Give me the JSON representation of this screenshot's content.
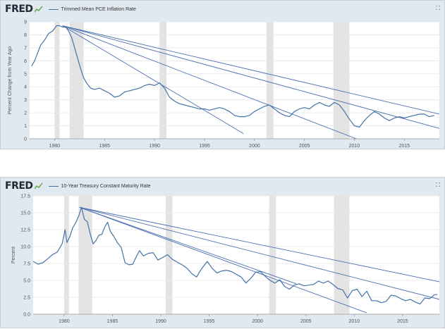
{
  "chart_data": [
    {
      "type": "line",
      "brand": "FRED",
      "title": "Trimmed Mean PCE Inflation Rate",
      "ylabel": "Percent Change from Year Ago",
      "xlim": [
        1977.5,
        2018.5
      ],
      "ylim": [
        0,
        9
      ],
      "yticks": [
        0,
        1,
        2,
        3,
        4,
        5,
        6,
        7,
        8,
        9
      ],
      "xticks": [
        1980,
        1985,
        1990,
        1995,
        2000,
        2005,
        2010,
        2015
      ],
      "recessions": [
        [
          1980.0,
          1980.5
        ],
        [
          1981.5,
          1982.9
        ],
        [
          1990.5,
          1991.2
        ],
        [
          2001.2,
          2001.9
        ],
        [
          2007.9,
          2009.5
        ]
      ],
      "series": [
        {
          "color": "#4572a7",
          "x": [
            1977.7,
            1978.0,
            1978.3,
            1978.6,
            1979.0,
            1979.4,
            1979.8,
            1980.2,
            1980.5,
            1980.8,
            1981.1,
            1981.4,
            1981.7,
            1982.0,
            1982.3,
            1982.6,
            1982.9,
            1983.2,
            1983.6,
            1984.0,
            1984.5,
            1985.0,
            1985.5,
            1986.0,
            1986.5,
            1987.0,
            1987.5,
            1988.0,
            1988.5,
            1989.0,
            1989.5,
            1990.0,
            1990.5,
            1991.0,
            1991.5,
            1992.0,
            1992.5,
            1993.0,
            1993.5,
            1994.0,
            1994.5,
            1995.0,
            1995.5,
            1996.0,
            1996.5,
            1997.0,
            1997.5,
            1998.0,
            1998.5,
            1999.0,
            1999.5,
            2000.0,
            2000.5,
            2001.0,
            2001.5,
            2002.0,
            2002.5,
            2003.0,
            2003.5,
            2004.0,
            2004.5,
            2005.0,
            2005.5,
            2006.0,
            2006.5,
            2007.0,
            2007.5,
            2008.0,
            2008.5,
            2009.0,
            2009.5,
            2010.0,
            2010.5,
            2011.0,
            2011.5,
            2012.0,
            2012.5,
            2013.0,
            2013.5,
            2014.0,
            2014.5,
            2015.0,
            2015.5,
            2016.0,
            2016.5,
            2017.0,
            2017.5,
            2018.0
          ],
          "values": [
            5.6,
            6.0,
            6.6,
            7.2,
            7.6,
            8.1,
            8.3,
            8.7,
            8.7,
            8.6,
            8.6,
            8.3,
            7.8,
            7.0,
            6.2,
            5.4,
            4.7,
            4.3,
            3.9,
            3.8,
            3.9,
            3.7,
            3.5,
            3.2,
            3.3,
            3.6,
            3.7,
            3.8,
            3.9,
            4.1,
            4.2,
            4.1,
            4.3,
            3.9,
            3.2,
            2.9,
            2.7,
            2.6,
            2.5,
            2.4,
            2.3,
            2.3,
            2.2,
            2.3,
            2.4,
            2.3,
            2.1,
            1.8,
            1.7,
            1.7,
            1.8,
            2.1,
            2.3,
            2.5,
            2.6,
            2.3,
            2.0,
            1.8,
            1.7,
            2.1,
            2.3,
            2.4,
            2.3,
            2.6,
            2.8,
            2.6,
            2.5,
            2.8,
            2.6,
            2.1,
            1.5,
            1.0,
            0.9,
            1.4,
            1.8,
            2.1,
            1.9,
            1.6,
            1.4,
            1.6,
            1.7,
            1.6,
            1.7,
            1.8,
            1.9,
            1.9,
            1.7,
            1.8
          ]
        }
      ],
      "trendlines": [
        [
          [
            1980.8,
            8.7
          ],
          [
            2018.5,
            0.8
          ]
        ],
        [
          [
            1980.8,
            8.7
          ],
          [
            2010.2,
            0.0
          ]
        ],
        [
          [
            1980.8,
            8.7
          ],
          [
            1998.9,
            0.4
          ]
        ],
        [
          [
            1980.8,
            8.7
          ],
          [
            2018.5,
            1.9
          ]
        ]
      ]
    },
    {
      "type": "line",
      "brand": "FRED",
      "title": "10-Year Treasury Constant Maturity Rate",
      "ylabel": "Percent",
      "xlim": [
        1976.8,
        2018.8
      ],
      "ylim": [
        0,
        17.5
      ],
      "yticks": [
        0.0,
        2.5,
        5.0,
        7.5,
        10.0,
        12.5,
        15.0,
        17.5
      ],
      "ytick_labels": [
        "0.0",
        "2.5",
        "5.0",
        "7.5",
        "10.0",
        "12.5",
        "15.0",
        "17.5"
      ],
      "xticks": [
        1980,
        1985,
        1990,
        1995,
        2000,
        2005,
        2010,
        2015
      ],
      "recessions": [
        [
          1980.0,
          1980.5
        ],
        [
          1981.5,
          1982.9
        ],
        [
          1990.5,
          1991.2
        ],
        [
          2001.2,
          2001.9
        ],
        [
          2007.9,
          2009.5
        ]
      ],
      "series": [
        {
          "color": "#4572a7",
          "x": [
            1976.8,
            1977.3,
            1977.8,
            1978.3,
            1978.8,
            1979.3,
            1979.8,
            1980.1,
            1980.3,
            1980.6,
            1980.9,
            1981.2,
            1981.5,
            1981.8,
            1982.1,
            1982.4,
            1982.7,
            1983.0,
            1983.3,
            1983.6,
            1983.9,
            1984.2,
            1984.5,
            1984.8,
            1985.1,
            1985.5,
            1985.9,
            1986.3,
            1986.7,
            1987.1,
            1987.5,
            1987.8,
            1988.2,
            1988.7,
            1989.2,
            1989.7,
            1990.2,
            1990.7,
            1991.2,
            1991.7,
            1992.2,
            1992.7,
            1993.2,
            1993.7,
            1994.2,
            1994.8,
            1995.3,
            1995.8,
            1996.3,
            1996.8,
            1997.3,
            1997.8,
            1998.3,
            1998.8,
            1999.3,
            1999.8,
            2000.3,
            2000.8,
            2001.3,
            2001.8,
            2002.3,
            2002.8,
            2003.3,
            2003.8,
            2004.3,
            2004.8,
            2005.3,
            2005.8,
            2006.3,
            2006.8,
            2007.3,
            2007.8,
            2008.3,
            2008.8,
            2009.3,
            2009.8,
            2010.3,
            2010.8,
            2011.3,
            2011.8,
            2012.3,
            2012.8,
            2013.3,
            2013.8,
            2014.3,
            2014.8,
            2015.3,
            2015.8,
            2016.3,
            2016.8,
            2017.3,
            2017.8,
            2018.3,
            2018.6
          ],
          "values": [
            7.8,
            7.4,
            7.6,
            8.2,
            8.8,
            9.2,
            10.4,
            12.5,
            10.6,
            11.5,
            12.8,
            13.5,
            14.5,
            15.8,
            14.0,
            13.7,
            11.9,
            10.4,
            10.9,
            11.7,
            11.8,
            12.9,
            13.6,
            12.2,
            11.6,
            10.6,
            9.9,
            7.6,
            7.3,
            7.4,
            8.6,
            9.4,
            8.6,
            9.0,
            9.1,
            8.0,
            8.4,
            8.8,
            8.1,
            7.7,
            7.3,
            6.8,
            6.0,
            5.5,
            6.7,
            7.8,
            6.8,
            6.1,
            6.4,
            6.5,
            6.3,
            5.9,
            5.5,
            4.6,
            5.3,
            6.2,
            6.3,
            5.6,
            5.0,
            4.6,
            5.1,
            4.1,
            3.7,
            4.3,
            4.5,
            4.2,
            4.3,
            4.4,
            4.9,
            4.6,
            4.9,
            4.4,
            3.8,
            3.6,
            2.4,
            3.5,
            3.7,
            2.6,
            3.4,
            2.0,
            2.0,
            1.7,
            1.9,
            2.8,
            2.7,
            2.3,
            2.0,
            2.2,
            1.8,
            1.5,
            2.4,
            2.3,
            2.9,
            2.9
          ]
        }
      ],
      "trendlines": [
        [
          [
            1981.6,
            15.8
          ],
          [
            2018.8,
            2.2
          ]
        ],
        [
          [
            1981.6,
            15.8
          ],
          [
            2011.3,
            0.2
          ]
        ],
        [
          [
            1981.6,
            15.8
          ],
          [
            2004.0,
            4.5
          ]
        ],
        [
          [
            1981.6,
            15.8
          ],
          [
            2018.8,
            4.8
          ]
        ]
      ]
    }
  ]
}
